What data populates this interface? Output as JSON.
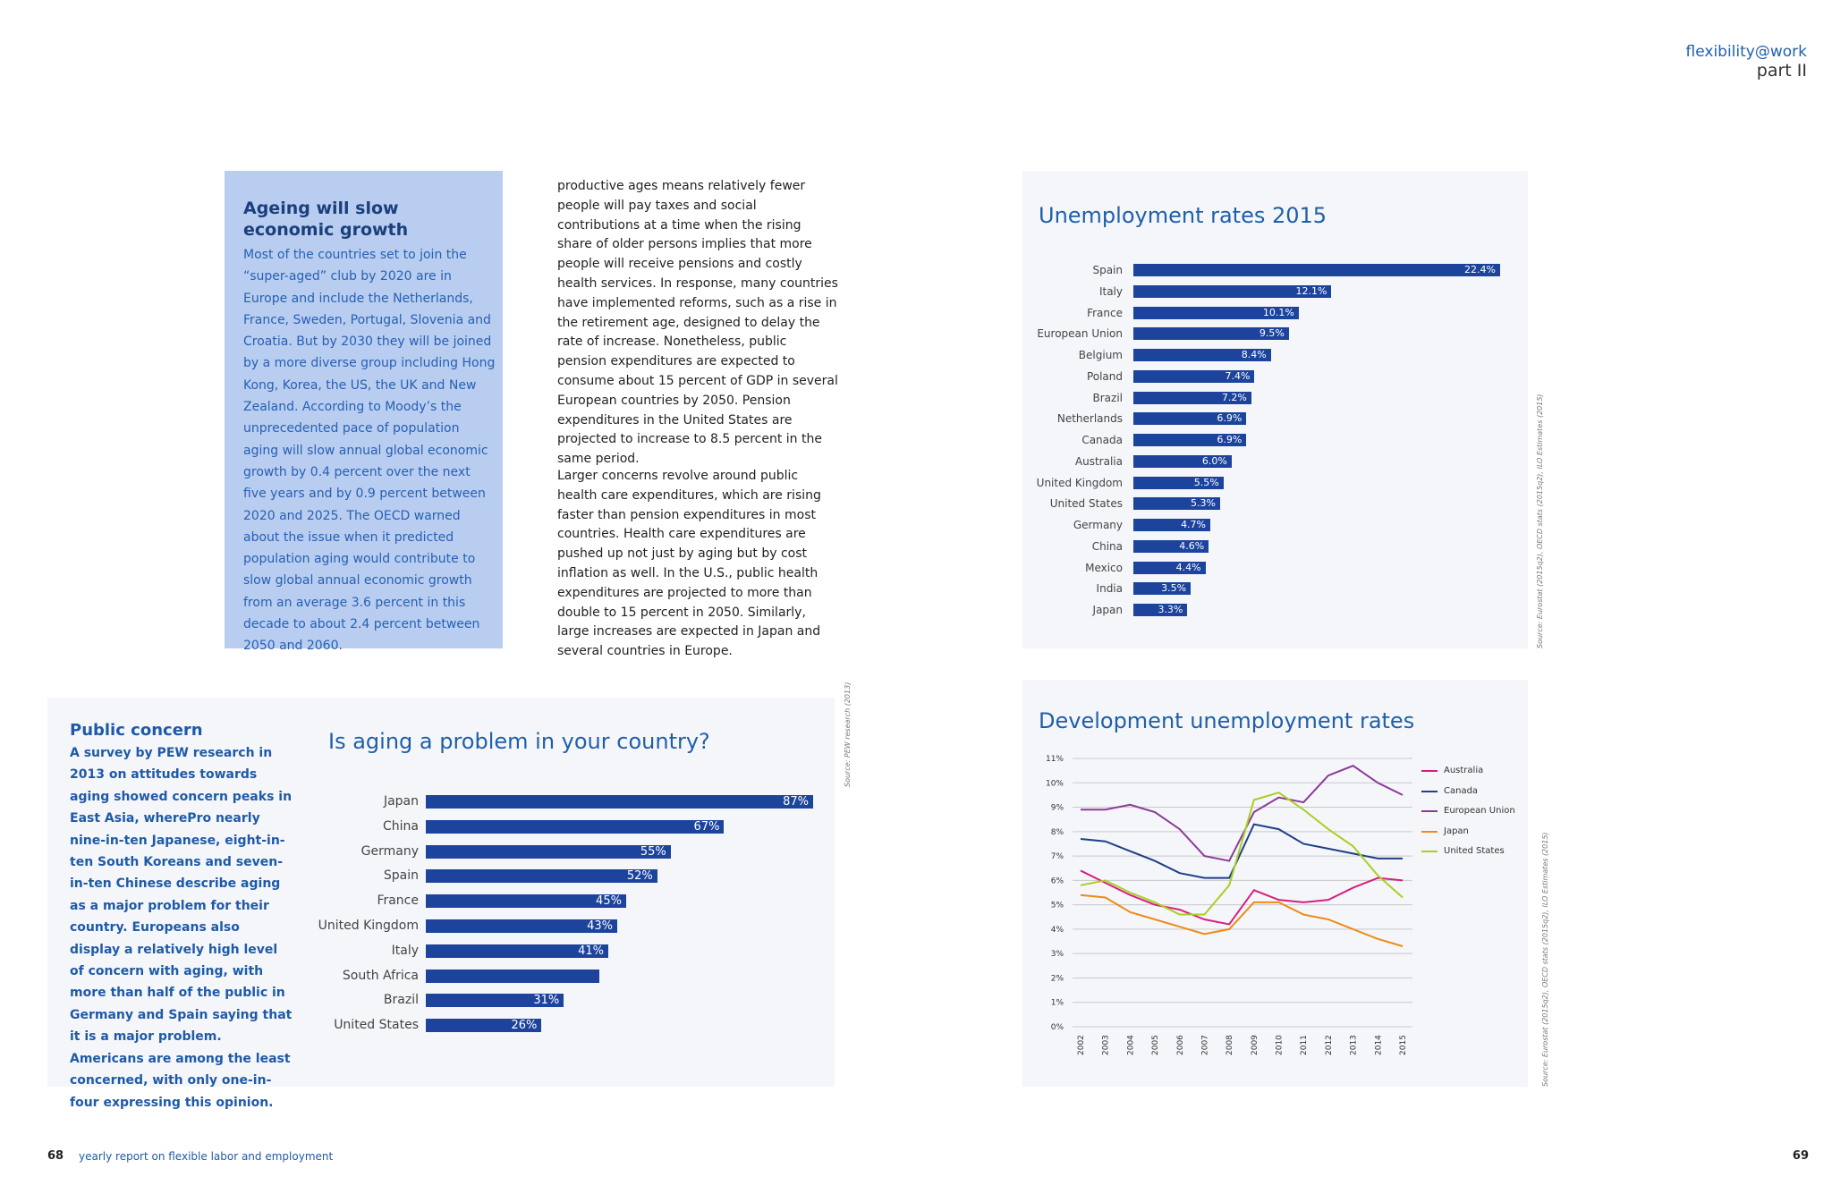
{
  "header": {
    "title": "flexibility@work",
    "subtitle": "part II"
  },
  "sidebar": {
    "title": "Ageing will slow economic growth",
    "body": "Most of the countries set to join the “super-aged” club by 2020 are in Europe and include the Netherlands, France, Sweden, Portugal, Slovenia and Croatia. But by 2030 they will be joined by a more diverse group including Hong Kong, Korea, the US, the UK and New Zealand. According to Moody’s the unprecedented pace of population aging will slow annual global economic growth by 0.4 percent over the next five years and by 0.9 percent between 2020 and 2025. The OECD warned about the issue when it predicted population aging would contribute to slow global annual economic growth from an average 3.6 percent in this decade to about 2.4 percent between 2050 and 2060."
  },
  "article": {
    "para1": "productive ages means relatively fewer people will pay taxes and social contributions at a time when the rising share of older persons implies that more people will receive pensions and costly health services.  In response, many countries have implemented reforms, such as a rise in the retirement age, designed to delay the rate of increase. Nonetheless, public pension expenditures are expected to consume about 15 percent of GDP in several European countries by 2050. Pension expenditures in the United States are projected to increase to 8.5 percent in the same period.",
    "para2": "Larger concerns revolve around public health care expenditures, which are rising faster than pension expenditures in most countries. Health care expenditures are pushed up not just by aging but by cost inflation as well. In the U.S., public health expenditures are projected to more than double to 15 percent in 2050. Similarly, large increases are expected in Japan and several countries in Europe."
  },
  "concern": {
    "title": "Public concern",
    "body": "A survey by PEW research in 2013 on attitudes towards aging showed concern peaks in East Asia, wherePro nearly nine-in-ten Japanese, eight-in-ten South Koreans and seven-in-ten Chinese describe aging as a major problem for their country. Europeans also display a relatively high level of concern with aging, with more than half of the public in Germany and Spain saying that it is a major problem. Americans are among the least concerned, with only one-in-four expressing this opinion."
  },
  "footer": {
    "left_page": "68",
    "left_text": "yearly report on flexible labor and employment",
    "right_page": "69"
  },
  "chart_data": [
    {
      "type": "bar",
      "title": "Unemployment rates 2015",
      "source": "Source: Eurostat (2015q2), OECD stats (2015q2), ILO Estimates (2015)",
      "categories": [
        "Spain",
        "Italy",
        "France",
        "European Union",
        "Belgium",
        "Poland",
        "Brazil",
        "Netherlands",
        "Canada",
        "Australia",
        "United Kingdom",
        "United States",
        "Germany",
        "China",
        "Mexico",
        "India",
        "Japan"
      ],
      "values": [
        22.4,
        12.1,
        10.1,
        9.5,
        8.4,
        7.4,
        7.2,
        6.9,
        6.9,
        6.0,
        5.5,
        5.3,
        4.7,
        4.6,
        4.4,
        3.5,
        3.3
      ],
      "labels": [
        "22.4%",
        "12.1%",
        "10.1%",
        "9.5%",
        "8.4%",
        "7.4%",
        "7.2%",
        "6.9%",
        "6.9%",
        "6.0%",
        "5.5%",
        "5.3%",
        "4.7%",
        "4.6%",
        "4.4%",
        "3.5%",
        "3.3%"
      ],
      "orientation": "horizontal",
      "bar_color": "#1c449c"
    },
    {
      "type": "bar",
      "title": "Is aging a problem in your country?",
      "source": "Source: PEW research (2013)",
      "categories": [
        "Japan",
        "China",
        "Germany",
        "Spain",
        "France",
        "United Kingdom",
        "Italy",
        "South Africa",
        "Brazil",
        "United States"
      ],
      "values": [
        87,
        67,
        55,
        52,
        45,
        43,
        41,
        39,
        31,
        26
      ],
      "labels": [
        "87%",
        "67%",
        "55%",
        "52%",
        "45%",
        "43%",
        "41%",
        "",
        "31%",
        "26%"
      ],
      "orientation": "horizontal",
      "bar_color": "#1c449c"
    },
    {
      "type": "line",
      "title": "Development unemployment rates",
      "source": "Source: Eurostat (2015q2), OECD stats (2015q2), ILO Estimates (2015)",
      "x": [
        "2002",
        "2003",
        "2004",
        "2005",
        "2006",
        "2007",
        "2008",
        "2009",
        "2010",
        "2011",
        "2012",
        "2013",
        "2014",
        "2015"
      ],
      "yticks": [
        "0%",
        "1%",
        "2%",
        "3%",
        "4%",
        "5%",
        "6%",
        "7%",
        "8%",
        "9%",
        "10%",
        "11%"
      ],
      "ylim": [
        0,
        11
      ],
      "grid": true,
      "legend": "right",
      "series": [
        {
          "name": "Australia",
          "color": "#d6207e",
          "values": [
            6.4,
            5.9,
            5.4,
            5.0,
            4.8,
            4.4,
            4.2,
            5.6,
            5.2,
            5.1,
            5.2,
            5.7,
            6.1,
            6.0
          ]
        },
        {
          "name": "Canada",
          "color": "#1f3f87",
          "values": [
            7.7,
            7.6,
            7.2,
            6.8,
            6.3,
            6.1,
            6.1,
            8.3,
            8.1,
            7.5,
            7.3,
            7.1,
            6.9,
            6.9
          ]
        },
        {
          "name": "European Union",
          "color": "#8a3a96",
          "values": [
            8.9,
            8.9,
            9.1,
            8.8,
            8.1,
            7.0,
            6.8,
            8.8,
            9.4,
            9.2,
            10.3,
            10.7,
            10.0,
            9.5
          ]
        },
        {
          "name": "Japan",
          "color": "#ef8a16",
          "values": [
            5.4,
            5.3,
            4.7,
            4.4,
            4.1,
            3.8,
            4.0,
            5.1,
            5.1,
            4.6,
            4.4,
            4.0,
            3.6,
            3.3
          ]
        },
        {
          "name": "United States",
          "color": "#a8cf22",
          "values": [
            5.8,
            6.0,
            5.5,
            5.1,
            4.6,
            4.6,
            5.8,
            9.3,
            9.6,
            8.9,
            8.1,
            7.4,
            6.2,
            5.3
          ]
        }
      ]
    }
  ]
}
